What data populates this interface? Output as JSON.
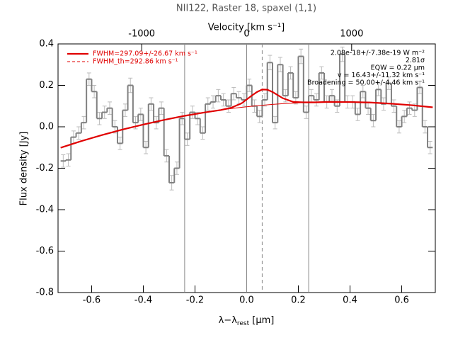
{
  "chart_data": {
    "type": "histogram",
    "title": "NII122, Raster 18, spaxel (1,1)",
    "xlabel": {
      "main": "λ−λ",
      "sub": "rest",
      "unit": " [μm]"
    },
    "ylabel": "Flux density [Jy]",
    "x2label": "Velocity [km s⁻¹]",
    "xlim": [
      -0.73,
      0.73
    ],
    "ylim": [
      -0.8,
      0.4
    ],
    "x2lim": [
      -1797,
      1797
    ],
    "xticks": [
      -0.6,
      -0.4,
      -0.2,
      {
        "value": 0,
        "label": "0.0"
      },
      0.2,
      0.4,
      0.6
    ],
    "yticks": [
      -0.8,
      -0.6,
      -0.4,
      -0.2,
      {
        "value": 0,
        "label": "0.0"
      },
      0.2,
      0.4
    ],
    "x2ticks": [
      -1000,
      0,
      1000
    ],
    "color": "#808080",
    "bins": [
      -0.72,
      -0.7,
      -0.68,
      -0.66,
      -0.64,
      -0.62,
      -0.6,
      -0.58,
      -0.56,
      -0.54,
      -0.52,
      -0.5,
      -0.48,
      -0.46,
      -0.44,
      -0.42,
      -0.4,
      -0.38,
      -0.36,
      -0.34,
      -0.32,
      -0.3,
      -0.28,
      -0.26,
      -0.24,
      -0.22,
      -0.2,
      -0.18,
      -0.16,
      -0.14,
      -0.12,
      -0.1,
      -0.08,
      -0.06,
      -0.04,
      -0.02,
      0.0,
      0.02,
      0.04,
      0.06,
      0.08,
      0.1,
      0.12,
      0.14,
      0.16,
      0.18,
      0.2,
      0.22,
      0.24,
      0.26,
      0.28,
      0.3,
      0.32,
      0.34,
      0.36,
      0.38,
      0.4,
      0.42,
      0.44,
      0.46,
      0.48,
      0.5,
      0.52,
      0.54,
      0.56,
      0.58,
      0.6,
      0.62,
      0.64,
      0.66,
      0.68,
      0.7,
      0.72
    ],
    "values": [
      -0.165,
      -0.16,
      -0.05,
      -0.03,
      0.02,
      0.23,
      0.17,
      0.04,
      0.07,
      0.09,
      0.0,
      -0.08,
      0.08,
      0.2,
      0.02,
      0.06,
      -0.1,
      0.11,
      0.02,
      0.09,
      -0.14,
      -0.27,
      -0.2,
      0.04,
      -0.06,
      0.07,
      0.04,
      -0.03,
      0.11,
      0.12,
      0.15,
      0.13,
      0.1,
      0.16,
      0.14,
      0.13,
      0.2,
      0.1,
      0.05,
      0.13,
      0.31,
      0.02,
      0.3,
      0.15,
      0.26,
      0.14,
      0.34,
      0.07,
      0.15,
      0.13,
      0.26,
      0.12,
      0.15,
      0.1,
      0.35,
      0.12,
      0.12,
      0.06,
      0.17,
      0.09,
      0.03,
      0.18,
      0.11,
      0.21,
      0.1,
      0.0,
      0.05,
      0.09,
      0.08,
      0.19,
      0.0,
      -0.1
    ],
    "errors": [
      0.03,
      0.03,
      0.03,
      0.03,
      0.03,
      0.03,
      0.03,
      0.03,
      0.03,
      0.03,
      0.03,
      0.03,
      0.03,
      0.035,
      0.03,
      0.03,
      0.03,
      0.03,
      0.03,
      0.03,
      0.03,
      0.035,
      0.03,
      0.03,
      0.03,
      0.03,
      0.03,
      0.03,
      0.03,
      0.03,
      0.03,
      0.03,
      0.03,
      0.03,
      0.03,
      0.03,
      0.03,
      0.03,
      0.03,
      0.03,
      0.035,
      0.03,
      0.035,
      0.03,
      0.03,
      0.03,
      0.035,
      0.03,
      0.03,
      0.03,
      0.03,
      0.03,
      0.03,
      0.03,
      0.035,
      0.03,
      0.03,
      0.03,
      0.03,
      0.03,
      0.03,
      0.03,
      0.03,
      0.03,
      0.03,
      0.03,
      0.03,
      0.03,
      0.03,
      0.03,
      0.03,
      0.03
    ],
    "fits": [
      {
        "name": "FWHM=297.09+/-26.67 km s⁻¹",
        "color": "#e00000",
        "width": 2.2,
        "dash": false,
        "x": [
          -0.72,
          -0.64,
          -0.56,
          -0.48,
          -0.4,
          -0.32,
          -0.24,
          -0.16,
          -0.1,
          -0.06,
          -0.02,
          0.02,
          0.04,
          0.06,
          0.08,
          0.1,
          0.14,
          0.18,
          0.22,
          0.26,
          0.32,
          0.4,
          0.48,
          0.56,
          0.64,
          0.72
        ],
        "values": [
          -0.101,
          -0.069,
          -0.04,
          -0.013,
          0.011,
          0.033,
          0.053,
          0.07,
          0.081,
          0.092,
          0.113,
          0.151,
          0.168,
          0.18,
          0.179,
          0.168,
          0.138,
          0.12,
          0.118,
          0.118,
          0.12,
          0.1195,
          0.117,
          0.1115,
          0.104,
          0.094
        ]
      },
      {
        "name": "FWHM_th=292.86 km s⁻¹",
        "color": "#e00000",
        "width": 1,
        "dash": true,
        "x": [],
        "values": []
      },
      {
        "color": "#e00000",
        "width": 1,
        "dash": false,
        "x": [
          -0.16,
          -0.1,
          -0.06,
          -0.02,
          0.02,
          0.06,
          0.1,
          0.14,
          0.18,
          0.22,
          0.26
        ],
        "values": [
          0.07,
          0.081,
          0.088,
          0.094,
          0.099,
          0.104,
          0.108,
          0.1115,
          0.114,
          0.117,
          0.118
        ]
      }
    ],
    "vlines": [
      {
        "x": -0.24,
        "dash": false
      },
      {
        "x": 0,
        "dash": false
      },
      {
        "x": 0.06,
        "dash": true
      },
      {
        "x": 0.24,
        "dash": false
      }
    ],
    "annotations": [
      "2.08e-18+/-7.38e-19 W m⁻²",
      "2.81σ",
      "EQW = 0.22 μm",
      "v = 16.43+/-11.32 km s⁻¹",
      "Broadening = 50.00+/-4.46 km s⁻¹"
    ]
  }
}
